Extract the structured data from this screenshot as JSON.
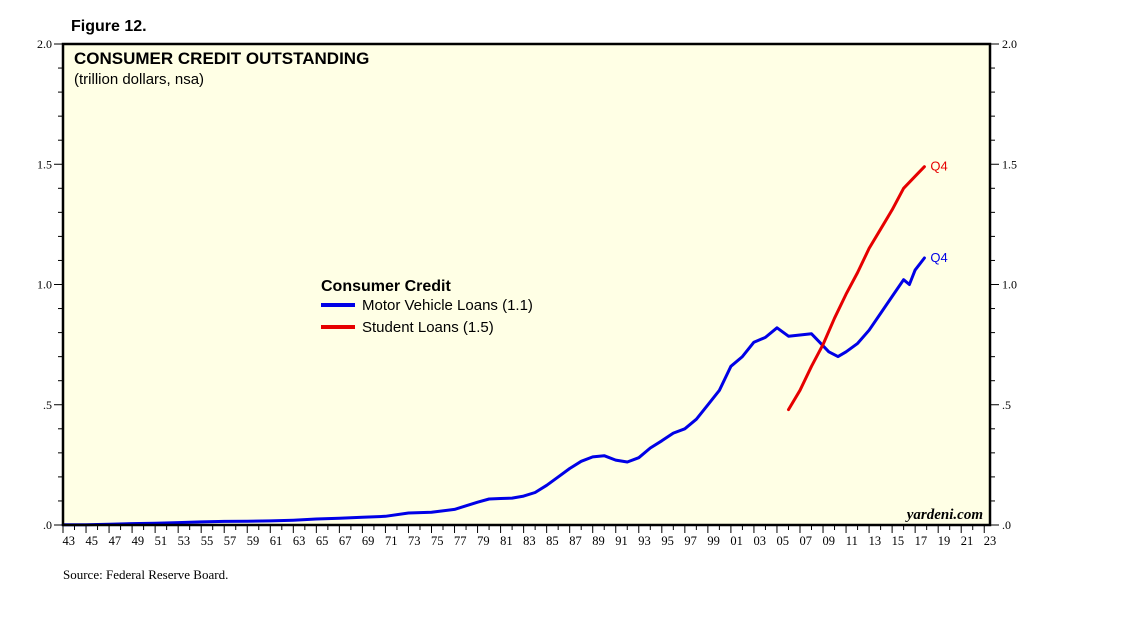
{
  "figure_label": "Figure 12.",
  "source_note": "Source: Federal Reserve Board.",
  "watermark": "yardeni.com",
  "colors": {
    "plot_background": "#FFFFE5",
    "motor_vehicle": "#0000E6",
    "student": "#E60000"
  },
  "chart_data": {
    "type": "line",
    "title": "CONSUMER CREDIT OUTSTANDING",
    "subtitle": "(trillion dollars, nsa)",
    "xlim": [
      1943,
      2023.5
    ],
    "ylim": [
      0,
      2
    ],
    "grid": false,
    "y_ticks": [
      0,
      0.5,
      1,
      1.5,
      2
    ],
    "y_tick_labels": [
      ".0",
      ".5",
      "1.0",
      "1.5",
      "2.0"
    ],
    "x_tick_labels": [
      "43",
      "45",
      "47",
      "49",
      "51",
      "53",
      "55",
      "57",
      "59",
      "61",
      "63",
      "65",
      "67",
      "69",
      "71",
      "73",
      "75",
      "77",
      "79",
      "81",
      "83",
      "85",
      "87",
      "89",
      "91",
      "93",
      "95",
      "97",
      "99",
      "01",
      "03",
      "05",
      "07",
      "09",
      "11",
      "13",
      "15",
      "17",
      "19",
      "21",
      "23"
    ],
    "legend": {
      "title": "Consumer Credit",
      "placement": "center-left",
      "entries": [
        "Motor Vehicle Loans (1.1)",
        "Student Loans (1.5)"
      ]
    },
    "series": [
      {
        "name": "Motor Vehicle Loans (1.1)",
        "end_label": "Q4",
        "points": [
          [
            1943,
            0.001
          ],
          [
            1945,
            0.001
          ],
          [
            1947,
            0.003
          ],
          [
            1949,
            0.006
          ],
          [
            1951,
            0.007
          ],
          [
            1953,
            0.01
          ],
          [
            1955,
            0.013
          ],
          [
            1957,
            0.015
          ],
          [
            1959,
            0.016
          ],
          [
            1961,
            0.017
          ],
          [
            1963,
            0.02
          ],
          [
            1965,
            0.025
          ],
          [
            1967,
            0.028
          ],
          [
            1969,
            0.032
          ],
          [
            1971,
            0.036
          ],
          [
            1973,
            0.05
          ],
          [
            1975,
            0.053
          ],
          [
            1977,
            0.065
          ],
          [
            1978,
            0.08
          ],
          [
            1979,
            0.095
          ],
          [
            1980,
            0.108
          ],
          [
            1981,
            0.11
          ],
          [
            1982,
            0.112
          ],
          [
            1983,
            0.12
          ],
          [
            1984,
            0.135
          ],
          [
            1985,
            0.165
          ],
          [
            1986,
            0.2
          ],
          [
            1987,
            0.235
          ],
          [
            1988,
            0.265
          ],
          [
            1989,
            0.283
          ],
          [
            1990,
            0.288
          ],
          [
            1991,
            0.27
          ],
          [
            1992,
            0.262
          ],
          [
            1993,
            0.28
          ],
          [
            1994,
            0.32
          ],
          [
            1995,
            0.35
          ],
          [
            1996,
            0.382
          ],
          [
            1997,
            0.4
          ],
          [
            1998,
            0.44
          ],
          [
            1999,
            0.5
          ],
          [
            2000,
            0.56
          ],
          [
            2001,
            0.66
          ],
          [
            2002,
            0.7
          ],
          [
            2003,
            0.76
          ],
          [
            2004,
            0.78
          ],
          [
            2005,
            0.82
          ],
          [
            2006,
            0.785
          ],
          [
            2007,
            0.79
          ],
          [
            2008,
            0.795
          ],
          [
            2008.7,
            0.76
          ],
          [
            2009.5,
            0.72
          ],
          [
            2010.3,
            0.7
          ],
          [
            2011,
            0.72
          ],
          [
            2012,
            0.755
          ],
          [
            2013,
            0.81
          ],
          [
            2014,
            0.88
          ],
          [
            2015,
            0.95
          ],
          [
            2016,
            1.02
          ],
          [
            2016.5,
            1.0
          ],
          [
            2017,
            1.06
          ],
          [
            2017.8,
            1.11
          ]
        ]
      },
      {
        "name": "Student Loans (1.5)",
        "end_label": "Q4",
        "points": [
          [
            2006,
            0.48
          ],
          [
            2007,
            0.56
          ],
          [
            2008,
            0.66
          ],
          [
            2009,
            0.75
          ],
          [
            2010,
            0.86
          ],
          [
            2011,
            0.96
          ],
          [
            2012,
            1.05
          ],
          [
            2013,
            1.15
          ],
          [
            2014,
            1.23
          ],
          [
            2015,
            1.31
          ],
          [
            2016,
            1.4
          ],
          [
            2017,
            1.45
          ],
          [
            2017.8,
            1.49
          ]
        ]
      }
    ]
  }
}
